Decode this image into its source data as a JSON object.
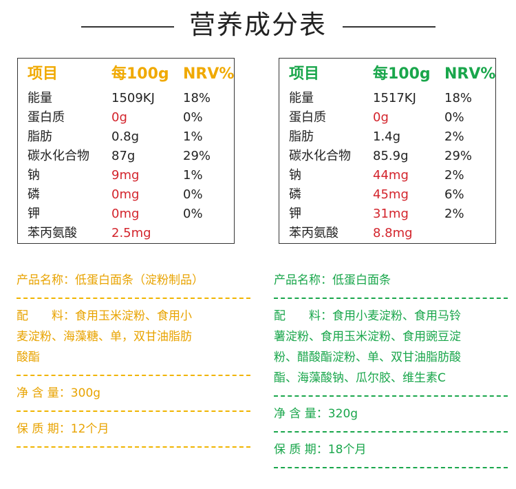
{
  "title": "营养成分表",
  "colors": {
    "yellow": "#f0a900",
    "green": "#19a64b",
    "red": "#d3242c"
  },
  "left_table": {
    "headers": [
      "项目",
      "每100g",
      "NRV%"
    ],
    "rows": [
      {
        "name": "能量",
        "value": "1509KJ",
        "nrv": "18%",
        "highlight": false
      },
      {
        "name": "蛋白质",
        "value": "0g",
        "nrv": "0%",
        "highlight": true
      },
      {
        "name": "脂肪",
        "value": "0.8g",
        "nrv": "1%",
        "highlight": false
      },
      {
        "name": "碳水化合物",
        "value": "87g",
        "nrv": "29%",
        "highlight": false
      },
      {
        "name": "钠",
        "value": "9mg",
        "nrv": "1%",
        "highlight": true
      },
      {
        "name": "磷",
        "value": "0mg",
        "nrv": "0%",
        "highlight": true
      },
      {
        "name": "钾",
        "value": "0mg",
        "nrv": "0%",
        "highlight": true
      },
      {
        "name": "苯丙氨酸",
        "value": "2.5mg",
        "nrv": "",
        "highlight": true
      }
    ]
  },
  "right_table": {
    "headers": [
      "项目",
      "每100g",
      "NRV%"
    ],
    "rows": [
      {
        "name": "能量",
        "value": "1517KJ",
        "nrv": "18%",
        "highlight": false
      },
      {
        "name": "蛋白质",
        "value": "0g",
        "nrv": "0%",
        "highlight": true
      },
      {
        "name": "脂肪",
        "value": "1.4g",
        "nrv": "2%",
        "highlight": false
      },
      {
        "name": "碳水化合物",
        "value": "85.9g",
        "nrv": "29%",
        "highlight": false
      },
      {
        "name": "钠",
        "value": "44mg",
        "nrv": "2%",
        "highlight": true
      },
      {
        "name": "磷",
        "value": "45mg",
        "nrv": "6%",
        "highlight": true
      },
      {
        "name": "钾",
        "value": "31mg",
        "nrv": "2%",
        "highlight": true
      },
      {
        "name": "苯丙氨酸",
        "value": "8.8mg",
        "nrv": "",
        "highlight": true
      }
    ]
  },
  "left_info": {
    "product_name": "产品名称：低蛋白面条（淀粉制品）",
    "ingredients_line1": "配　　料：食用玉米淀粉、食用小",
    "ingredients_line2": "麦淀粉、海藻糖、单，双甘油脂肪",
    "ingredients_line3": "酸酯",
    "net_content": "净 含 量：300g",
    "shelf_life": "保 质 期：12个月"
  },
  "right_info": {
    "product_name": "产品名称：低蛋白面条",
    "ingredients_line1": "配　　料：食用小麦淀粉、食用马铃",
    "ingredients_line2": "薯淀粉、食用玉米淀粉、食用豌豆淀",
    "ingredients_line3": "粉、醋酸酯淀粉、单、双甘油脂肪酸",
    "ingredients_line4": "酯、海藻酸钠、瓜尔胶、维生素C",
    "net_content": "净 含 量：320g",
    "shelf_life": "保 质 期：18个月"
  }
}
